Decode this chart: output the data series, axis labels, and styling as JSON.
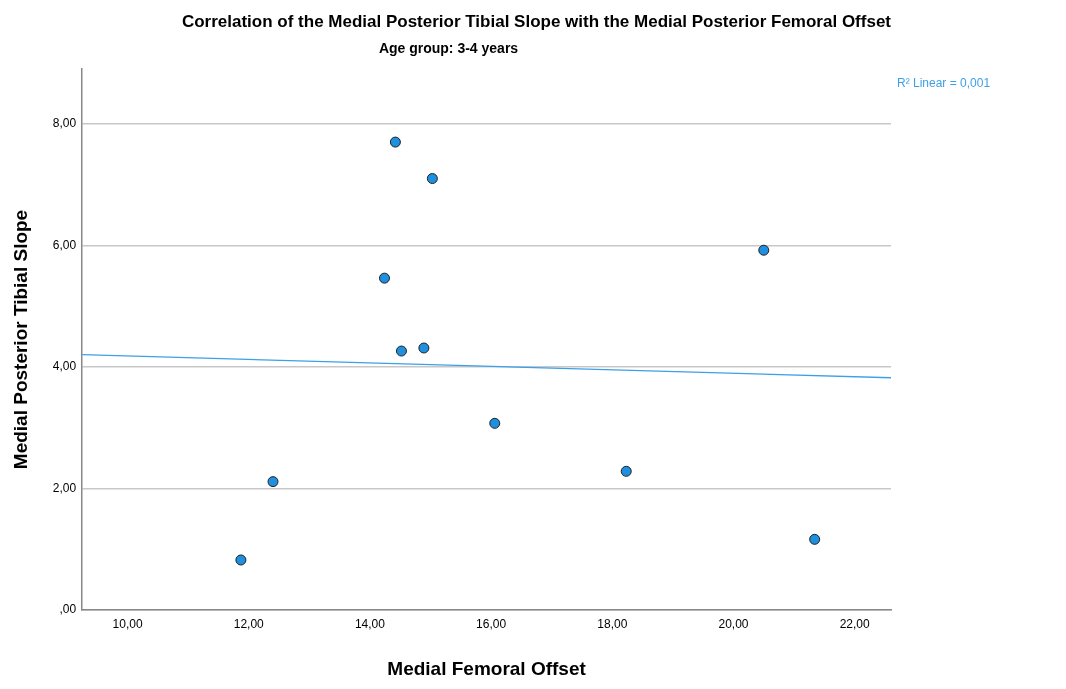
{
  "chart_data": {
    "type": "scatter",
    "title": "Correlation of the Medial Posterior Tibial Slope with the Medial Posterior Femoral Offset",
    "subtitle": "Age group: 3-4 years",
    "xlabel": "Medial Femoral Offset",
    "ylabel": "Medial Posterior Tibial Slope",
    "xlim": [
      9.25,
      22.6
    ],
    "ylim": [
      0,
      8.9
    ],
    "xticks": [
      {
        "value": 10,
        "label": "10,00"
      },
      {
        "value": 12,
        "label": "12,00"
      },
      {
        "value": 14,
        "label": "14,00"
      },
      {
        "value": 16,
        "label": "16,00"
      },
      {
        "value": 18,
        "label": "18,00"
      },
      {
        "value": 20,
        "label": "20,00"
      },
      {
        "value": 22,
        "label": "22,00"
      }
    ],
    "yticks": [
      {
        "value": 0,
        "label": ",00"
      },
      {
        "value": 2,
        "label": "2,00"
      },
      {
        "value": 4,
        "label": "4,00"
      },
      {
        "value": 6,
        "label": "6,00"
      },
      {
        "value": 8,
        "label": "8,00"
      }
    ],
    "grid": "y",
    "legend": false,
    "series": [
      {
        "color": "#1f8fe0",
        "marker": "circle",
        "x": [
          11.87,
          12.4,
          14.24,
          14.42,
          14.52,
          14.89,
          15.03,
          16.06,
          18.23,
          20.5,
          21.34
        ],
        "values": [
          0.82,
          2.11,
          5.46,
          7.7,
          4.26,
          4.31,
          7.1,
          3.07,
          2.28,
          5.92,
          1.16
        ]
      },
      {
        "type": "line",
        "marker": "none",
        "color": "#3ba0e8",
        "x": [
          9.25,
          22.6
        ],
        "values": [
          4.2,
          3.82
        ]
      }
    ],
    "annotations": [
      "R² Linear = 0,001"
    ]
  }
}
